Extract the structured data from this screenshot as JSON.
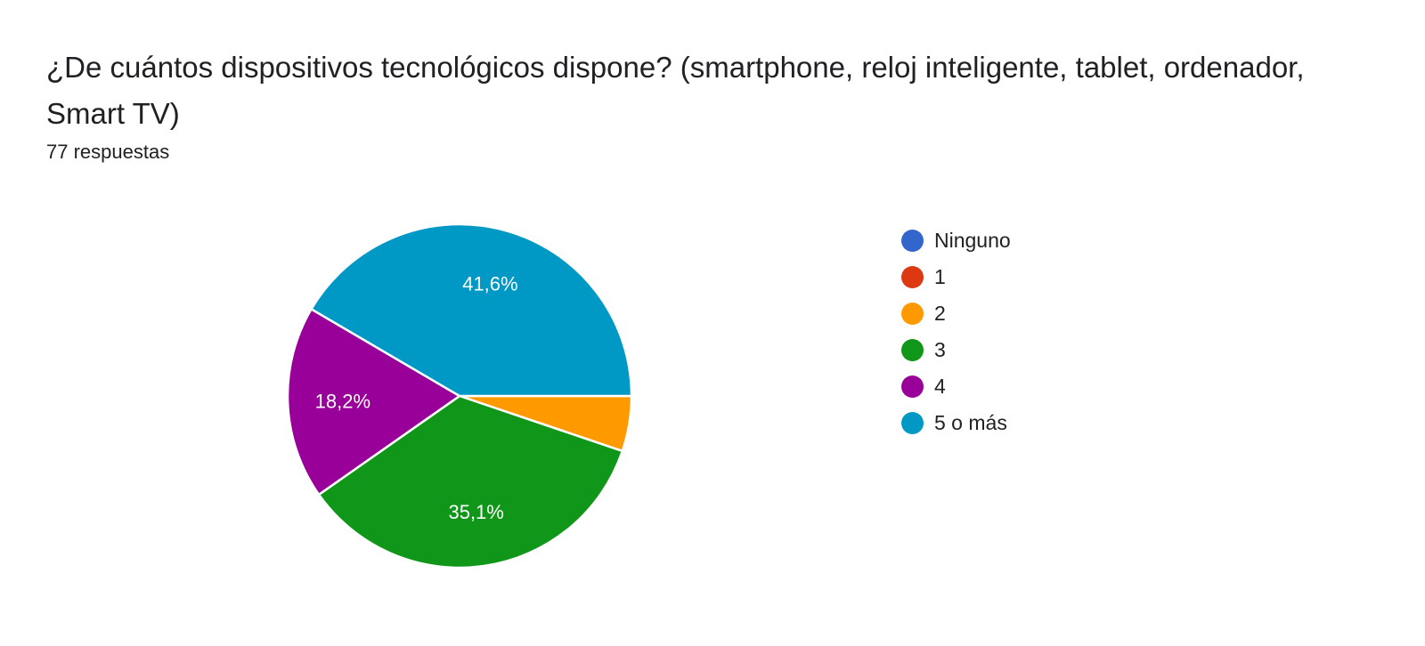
{
  "question": {
    "title": "¿De cuántos dispositivos tecnológicos dispone? (smartphone, reloj inteligente, tablet, ordenador, Smart TV)",
    "response_count": "77 respuestas"
  },
  "chart_data": {
    "type": "pie",
    "categories": [
      "Ninguno",
      "1",
      "2",
      "3",
      "4",
      "5 o más"
    ],
    "values": [
      0,
      0,
      5.2,
      35.1,
      18.2,
      41.6
    ],
    "value_labels": [
      "",
      "",
      "",
      "35,1%",
      "18,2%",
      "41,6%"
    ],
    "colors": [
      "#3366cc",
      "#dc3912",
      "#ff9900",
      "#109618",
      "#990099",
      "#0099c6"
    ],
    "legend_placement": "right"
  }
}
